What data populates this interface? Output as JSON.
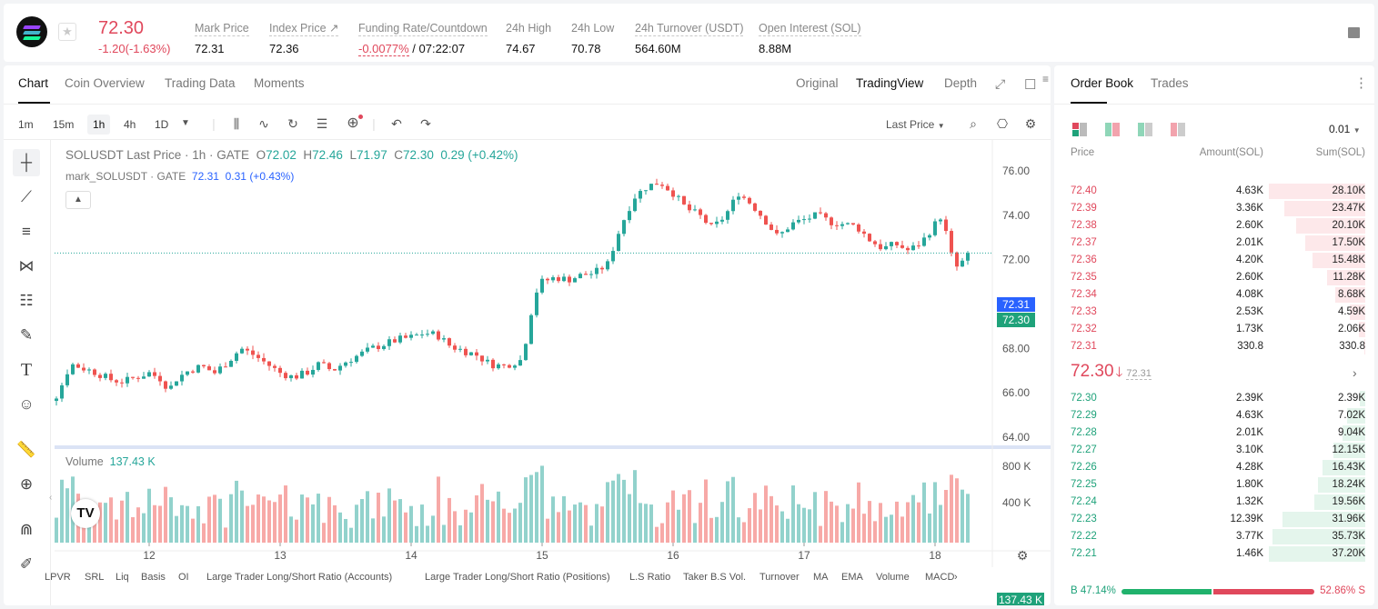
{
  "header": {
    "last_price": "72.30",
    "change": "-1.20(-1.63%)",
    "stats": [
      {
        "label": "Mark Price",
        "value": "72.31"
      },
      {
        "label": "Index Price ↗",
        "value": "72.36"
      },
      {
        "label": "Funding Rate/Countdown",
        "value_red": "-0.0077%",
        "value": " / 07:22:07"
      },
      {
        "label": "24h High",
        "value": "74.67"
      },
      {
        "label": "24h Low",
        "value": "70.78"
      },
      {
        "label": "24h Turnover (USDT)",
        "value": "564.60M"
      },
      {
        "label": "Open Interest (SOL)",
        "value": "8.88M"
      }
    ]
  },
  "chart_tabs": [
    "Chart",
    "Coin Overview",
    "Trading Data",
    "Moments"
  ],
  "view_tabs": [
    "Original",
    "TradingView",
    "Depth"
  ],
  "timeframes": [
    "1m",
    "15m",
    "1h",
    "4h",
    "1D"
  ],
  "price_source": "Last Price",
  "legend": {
    "symbol": "SOLUSDT Last Price · 1h · GATE",
    "o_lbl": "O",
    "o": "72.02",
    "h_lbl": "H",
    "h": "72.46",
    "l_lbl": "L",
    "l": "71.97",
    "c_lbl": "C",
    "c": "72.30",
    "chg": "0.29 (+0.42%)",
    "mark_label": "mark_SOLUSDT · GATE",
    "mark_value": "72.31",
    "mark_chg": "0.31 (+0.43%)"
  },
  "volume_legend": {
    "label": "Volume",
    "value": "137.43 K"
  },
  "price_tags": {
    "mark": "72.31",
    "last": "72.30",
    "volume": "137.43 K"
  },
  "indicators": [
    "LPVR",
    "SRL",
    "Liq",
    "Basis",
    "OI",
    "Large Trader Long/Short Ratio (Accounts)",
    "Large Trader Long/Short Ratio (Positions)",
    "L.S Ratio",
    "Taker B.S Vol.",
    "Turnover",
    "MA",
    "EMA",
    "Volume",
    "MACD"
  ],
  "chart_data": {
    "type": "candlestick",
    "symbol": "SOLUSDT",
    "interval": "1h",
    "y_ticks": [
      "76.00",
      "74.00",
      "72.00",
      "70.00",
      "68.00",
      "66.00",
      "64.00"
    ],
    "ylim": [
      64,
      76
    ],
    "x_ticks": [
      "12",
      "13",
      "14",
      "15",
      "16",
      "17",
      "18"
    ],
    "volume_ticks": [
      "800 K",
      "400 K"
    ],
    "close_path": [
      [
        11.0,
        65.0
      ],
      [
        11.1,
        65.3
      ],
      [
        11.2,
        65.6
      ],
      [
        11.3,
        65.9
      ],
      [
        11.4,
        67.3
      ],
      [
        11.5,
        67.1
      ],
      [
        11.6,
        66.9
      ],
      [
        11.7,
        66.6
      ],
      [
        11.8,
        66.5
      ],
      [
        11.9,
        66.7
      ],
      [
        12.0,
        66.9
      ],
      [
        12.1,
        66.6
      ],
      [
        12.15,
        66.1
      ],
      [
        12.2,
        66.6
      ],
      [
        12.3,
        67.0
      ],
      [
        12.4,
        67.2
      ],
      [
        12.5,
        66.9
      ],
      [
        12.6,
        67.4
      ],
      [
        12.7,
        68.0
      ],
      [
        12.8,
        67.7
      ],
      [
        12.9,
        67.3
      ],
      [
        12.95,
        67.1
      ],
      [
        13.0,
        66.9
      ],
      [
        13.1,
        66.7
      ],
      [
        13.2,
        66.9
      ],
      [
        13.3,
        67.3
      ],
      [
        13.4,
        67.0
      ],
      [
        13.5,
        67.4
      ],
      [
        13.6,
        67.7
      ],
      [
        13.7,
        68.0
      ],
      [
        13.8,
        68.2
      ],
      [
        13.9,
        68.4
      ],
      [
        14.0,
        68.5
      ],
      [
        14.1,
        68.7
      ],
      [
        14.2,
        68.6
      ],
      [
        14.3,
        68.1
      ],
      [
        14.4,
        67.9
      ],
      [
        14.5,
        67.7
      ],
      [
        14.6,
        67.3
      ],
      [
        14.7,
        67.2
      ],
      [
        14.8,
        67.4
      ],
      [
        14.85,
        67.5
      ],
      [
        14.9,
        69.2
      ],
      [
        14.95,
        70.5
      ],
      [
        15.0,
        71.0
      ],
      [
        15.1,
        71.2
      ],
      [
        15.2,
        71.1
      ],
      [
        15.3,
        71.3
      ],
      [
        15.4,
        71.4
      ],
      [
        15.5,
        71.8
      ],
      [
        15.6,
        73.5
      ],
      [
        15.7,
        74.8
      ],
      [
        15.8,
        75.3
      ],
      [
        15.9,
        75.5
      ],
      [
        16.0,
        75.0
      ],
      [
        16.1,
        74.3
      ],
      [
        16.2,
        74.0
      ],
      [
        16.3,
        73.4
      ],
      [
        16.4,
        74.0
      ],
      [
        16.5,
        75.0
      ],
      [
        16.6,
        74.5
      ],
      [
        16.7,
        73.8
      ],
      [
        16.8,
        73.0
      ],
      [
        16.9,
        73.6
      ],
      [
        17.0,
        73.8
      ],
      [
        17.1,
        74.0
      ],
      [
        17.2,
        73.7
      ],
      [
        17.3,
        73.6
      ],
      [
        17.4,
        73.5
      ],
      [
        17.5,
        72.9
      ],
      [
        17.6,
        72.5
      ],
      [
        17.7,
        72.7
      ],
      [
        17.8,
        72.4
      ],
      [
        17.9,
        72.8
      ],
      [
        18.0,
        73.6
      ],
      [
        18.05,
        74.0
      ],
      [
        18.1,
        72.8
      ],
      [
        18.15,
        71.6
      ],
      [
        18.2,
        71.8
      ],
      [
        18.25,
        72.3
      ]
    ],
    "last_price": 72.3,
    "mark_price": 72.31,
    "volume_last": "137.43 K"
  },
  "orderbook": {
    "tabs": [
      "Order Book",
      "Trades"
    ],
    "tick_size": "0.01",
    "headers": [
      "Price",
      "Amount(SOL)",
      "Sum(SOL)"
    ],
    "asks": [
      {
        "price": "72.40",
        "amount": "4.63K",
        "sum": "28.10K",
        "depth": 1.0
      },
      {
        "price": "72.39",
        "amount": "3.36K",
        "sum": "23.47K",
        "depth": 0.84
      },
      {
        "price": "72.38",
        "amount": "2.60K",
        "sum": "20.10K",
        "depth": 0.72
      },
      {
        "price": "72.37",
        "amount": "2.01K",
        "sum": "17.50K",
        "depth": 0.62
      },
      {
        "price": "72.36",
        "amount": "4.20K",
        "sum": "15.48K",
        "depth": 0.55
      },
      {
        "price": "72.35",
        "amount": "2.60K",
        "sum": "11.28K",
        "depth": 0.4
      },
      {
        "price": "72.34",
        "amount": "4.08K",
        "sum": "8.68K",
        "depth": 0.31
      },
      {
        "price": "72.33",
        "amount": "2.53K",
        "sum": "4.59K",
        "depth": 0.16
      },
      {
        "price": "72.32",
        "amount": "1.73K",
        "sum": "2.06K",
        "depth": 0.07
      },
      {
        "price": "72.31",
        "amount": "330.8",
        "sum": "330.8",
        "depth": 0.01
      }
    ],
    "mid_price": "72.30",
    "mid_arrow": "🡓",
    "mid_mark": "72.31",
    "bids": [
      {
        "price": "72.30",
        "amount": "2.39K",
        "sum": "2.39K",
        "depth": 0.06
      },
      {
        "price": "72.29",
        "amount": "4.63K",
        "sum": "7.02K",
        "depth": 0.19
      },
      {
        "price": "72.28",
        "amount": "2.01K",
        "sum": "9.04K",
        "depth": 0.24
      },
      {
        "price": "72.27",
        "amount": "3.10K",
        "sum": "12.15K",
        "depth": 0.33
      },
      {
        "price": "72.26",
        "amount": "4.28K",
        "sum": "16.43K",
        "depth": 0.44
      },
      {
        "price": "72.25",
        "amount": "1.80K",
        "sum": "18.24K",
        "depth": 0.49
      },
      {
        "price": "72.24",
        "amount": "1.32K",
        "sum": "19.56K",
        "depth": 0.53
      },
      {
        "price": "72.23",
        "amount": "12.39K",
        "sum": "31.96K",
        "depth": 0.86
      },
      {
        "price": "72.22",
        "amount": "3.77K",
        "sum": "35.73K",
        "depth": 0.96
      },
      {
        "price": "72.21",
        "amount": "1.46K",
        "sum": "37.20K",
        "depth": 1.0
      }
    ],
    "buy_ratio": "B 47.14%",
    "sell_ratio": "52.86% S",
    "buy_fraction": 0.4714
  },
  "colors": {
    "up": "#26a69a",
    "down": "#ef5350",
    "ask": "#e0485c",
    "bid": "#1fa27a",
    "mark": "#2962ff"
  }
}
